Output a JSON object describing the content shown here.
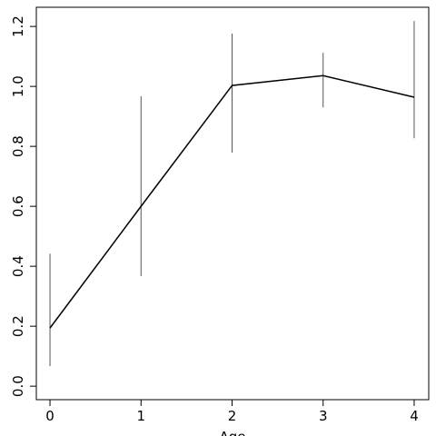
{
  "chart_data": {
    "type": "line",
    "x_label": "Age",
    "x": [
      0,
      1,
      2,
      3,
      4
    ],
    "series": [
      {
        "color": "#000000",
        "values": [
          0.194,
          0.6,
          1.003,
          1.036,
          0.964
        ],
        "lower": [
          0.067,
          0.367,
          0.779,
          0.93,
          0.827
        ],
        "upper": [
          0.442,
          0.967,
          1.176,
          1.112,
          1.218
        ]
      }
    ],
    "xlim": [
      -0.15,
      4.16
    ],
    "ylim": [
      -0.045,
      1.264
    ],
    "xticks": [
      0,
      1,
      2,
      3,
      4
    ],
    "yticks": [
      {
        "value": 0,
        "label": "0.0"
      },
      0.2,
      0.4,
      0.6,
      0.8,
      {
        "value": 1,
        "label": "1.0"
      },
      1.2
    ]
  }
}
